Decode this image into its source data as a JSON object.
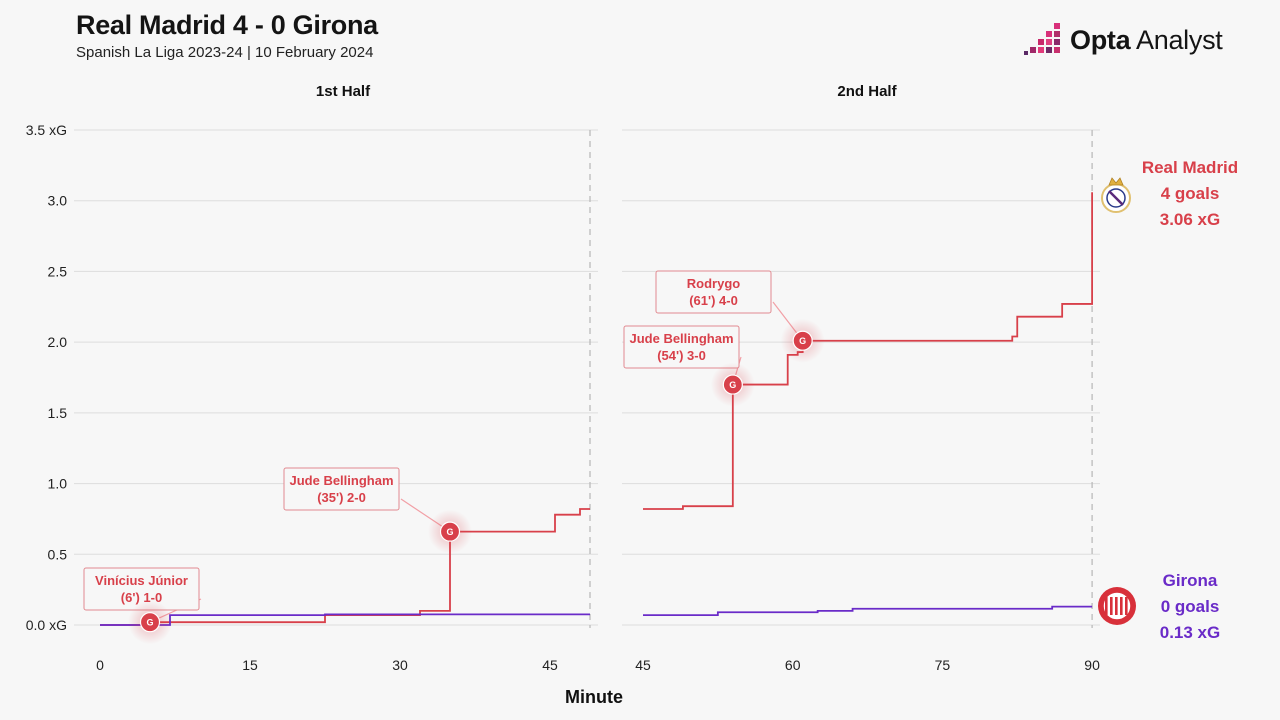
{
  "header": {
    "title": "Real Madrid 4 - 0 Girona",
    "subtitle": "Spanish La Liga 2023-24 | 10 February 2024",
    "brand_bold": "Opta",
    "brand_light": "Analyst"
  },
  "colors": {
    "real_madrid": "#d8404a",
    "girona": "#6a2bc8",
    "grid": "#dddddd",
    "background": "#f7f7f7"
  },
  "chart_data": {
    "type": "line",
    "step": true,
    "xlabel": "Minute",
    "ylabel": "",
    "ylim": [
      0,
      3.5
    ],
    "y_ticks": [
      {
        "value": 0,
        "label": "0.0 xG"
      },
      {
        "value": 0.5,
        "label": "0.5"
      },
      {
        "value": 1.0,
        "label": "1.0"
      },
      {
        "value": 1.5,
        "label": "1.5"
      },
      {
        "value": 2.0,
        "label": "2.0"
      },
      {
        "value": 2.5,
        "label": "2.5"
      },
      {
        "value": 3.0,
        "label": "3.0"
      },
      {
        "value": 3.5,
        "label": "3.5 xG"
      }
    ],
    "panels": [
      {
        "name": "1st Half",
        "xlim": [
          0,
          49
        ],
        "x_ticks": [
          0,
          15,
          30,
          45
        ],
        "end_line": 49
      },
      {
        "name": "2nd Half",
        "xlim": [
          45,
          95
        ],
        "x_ticks": [
          45,
          60,
          75,
          90
        ],
        "end_line": 90
      }
    ],
    "series": [
      {
        "name": "Real Madrid",
        "color": "#d8404a",
        "summary": [
          "Real Madrid",
          "4 goals",
          "3.06 xG"
        ],
        "icon": "real-madrid-crest-icon",
        "halves": [
          [
            [
              0,
              0
            ],
            [
              5,
              0.02
            ],
            [
              22.5,
              0.07
            ],
            [
              32,
              0.1
            ],
            [
              35,
              0.66
            ],
            [
              45.5,
              0.78
            ],
            [
              48,
              0.82
            ],
            [
              49,
              0.82
            ]
          ],
          [
            [
              45,
              0.82
            ],
            [
              49,
              0.84
            ],
            [
              54,
              1.7
            ],
            [
              59.5,
              1.91
            ],
            [
              60.5,
              1.93
            ],
            [
              61,
              2.01
            ],
            [
              82,
              2.04
            ],
            [
              82.5,
              2.18
            ],
            [
              87,
              2.27
            ],
            [
              90,
              3.06
            ]
          ]
        ],
        "goals": [
          {
            "half": 0,
            "minute": 5,
            "xg": 0.02,
            "label": [
              "Vinícius Júnior",
              "(6') 1-0"
            ],
            "box": [
              92,
              572
            ]
          },
          {
            "half": 0,
            "minute": 35,
            "xg": 0.66,
            "label": [
              "Jude Bellingham",
              "(35') 2-0"
            ],
            "box": [
              292,
              472
            ]
          },
          {
            "half": 1,
            "minute": 54,
            "xg": 1.7,
            "label": [
              "Jude Bellingham",
              "(54') 3-0"
            ],
            "box": [
              632,
              330
            ]
          },
          {
            "half": 1,
            "minute": 61,
            "xg": 2.01,
            "label": [
              "Rodrygo",
              "(61') 4-0"
            ],
            "box": [
              664,
              275
            ]
          }
        ]
      },
      {
        "name": "Girona",
        "color": "#6a2bc8",
        "summary": [
          "Girona",
          "0 goals",
          "0.13 xG"
        ],
        "icon": "girona-crest-icon",
        "halves": [
          [
            [
              0,
              0
            ],
            [
              7,
              0.07
            ],
            [
              22.5,
              0.075
            ],
            [
              49,
              0.075
            ]
          ],
          [
            [
              45,
              0.07
            ],
            [
              52.5,
              0.09
            ],
            [
              62.5,
              0.1
            ],
            [
              66,
              0.115
            ],
            [
              86,
              0.13
            ],
            [
              90,
              0.13
            ]
          ]
        ],
        "goals": []
      }
    ]
  }
}
